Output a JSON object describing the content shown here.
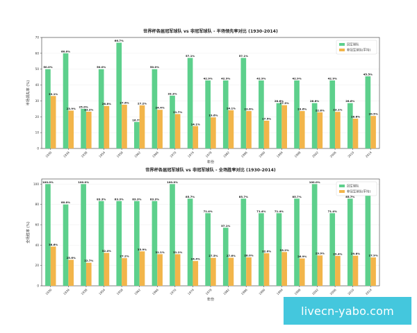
{
  "colors": {
    "champion": "#5dd08c",
    "non_champion": "#f2b54a",
    "axis": "#333333",
    "grid": "#ececec"
  },
  "watermark": {
    "text": "livecn-yabo.com"
  },
  "chart_data": [
    {
      "type": "bar",
      "title": "世界杯各届冠军球队 vs 非冠军球队 - 半场领先率对比 (1930-2014)",
      "xlabel": "年份",
      "ylabel": "半场领先率 (%)",
      "ylim": [
        0,
        70
      ],
      "yticks": [
        0,
        10,
        20,
        30,
        40,
        50,
        60,
        70
      ],
      "categories": [
        "1930",
        "1934",
        "1938",
        "1954",
        "1958",
        "1962",
        "1966",
        "1970",
        "1974",
        "1978",
        "1982",
        "1986",
        "1990",
        "1994",
        "1998",
        "2002",
        "2006",
        "2010",
        "2014"
      ],
      "legend": {
        "position": "top-right",
        "entries": [
          "冠军球队",
          "非冠军球队(平均)"
        ]
      },
      "series": [
        {
          "name": "冠军球队",
          "values": [
            50.0,
            60.0,
            25.0,
            50.0,
            66.7,
            16.7,
            50.0,
            33.3,
            57.1,
            42.9,
            42.9,
            57.1,
            42.9,
            28.6,
            42.9,
            28.6,
            42.9,
            28.6,
            45.5
          ],
          "labels": [
            "50.0%",
            "60.0%",
            "25.0%",
            "50.0%",
            "66.7%",
            "16.7%",
            "50.0%",
            "33.3%",
            "57.1%",
            "42.9%",
            "42.9%",
            "57.1%",
            "42.9%",
            "28.6%",
            "42.9%",
            "28.6%",
            "42.9%",
            "28.6%",
            "45.5%"
          ]
        },
        {
          "name": "非冠军球队(平均)",
          "values": [
            33.1,
            23.9,
            23.2,
            26.8,
            27.6,
            27.2,
            24.4,
            21.7,
            14.1,
            19.6,
            24.1,
            23.6,
            17.5,
            27.3,
            23.6,
            22.8,
            23.1,
            18.8,
            20.5
          ],
          "labels": [
            "33.1%",
            "23.9%",
            "23.2%",
            "26.8%",
            "27.6%",
            "27.2%",
            "24.4%",
            "21.7%",
            "14.1%",
            "19.6%",
            "24.1%",
            "23.6%",
            "17.5%",
            "27.3%",
            "23.6%",
            "22.8%",
            "23.1%",
            "18.8%",
            "20.5%"
          ]
        }
      ]
    },
    {
      "type": "bar",
      "title": "世界杯各届冠军球队 vs 非冠军球队 - 全场胜率对比 (1930-2014)",
      "xlabel": "年份",
      "ylabel": "全场胜率 (%)",
      "ylim": [
        0,
        105
      ],
      "yticks": [
        0,
        20,
        40,
        60,
        80,
        100
      ],
      "categories": [
        "1930",
        "1934",
        "1938",
        "1954",
        "1958",
        "1962",
        "1966",
        "1970",
        "1974",
        "1978",
        "1982",
        "1986",
        "1990",
        "1994",
        "1998",
        "2002",
        "2006",
        "2010",
        "2014"
      ],
      "legend": {
        "position": "top-right",
        "entries": [
          "冠军球队",
          "非冠军球队(平均)"
        ]
      },
      "series": [
        {
          "name": "冠军球队",
          "values": [
            100.0,
            80.0,
            100.0,
            83.3,
            83.3,
            83.3,
            83.3,
            100.0,
            85.7,
            71.4,
            57.1,
            85.7,
            71.4,
            71.4,
            85.7,
            100.0,
            71.4,
            85.7,
            90.9
          ],
          "labels": [
            "100.0%",
            "80.0%",
            "100.0%",
            "83.3%",
            "83.3%",
            "83.3%",
            "83.3%",
            "100.0%",
            "85.7%",
            "71.4%",
            "57.1%",
            "85.7%",
            "71.4%",
            "71.4%",
            "85.7%",
            "100.0%",
            "71.4%",
            "85.7%",
            "90.9%"
          ]
        },
        {
          "name": "非冠军球队(平均)",
          "values": [
            38.6,
            25.6,
            22.7,
            32.4,
            27.2,
            33.9,
            31.1,
            31.1,
            24.4,
            27.5,
            27.6,
            28.0,
            32.0,
            33.2,
            26.9,
            29.9,
            29.4,
            29.6,
            27.9
          ],
          "labels": [
            "38.6%",
            "25.6%",
            "22.7%",
            "32.4%",
            "27.2%",
            "33.9%",
            "31.1%",
            "31.1%",
            "24.4%",
            "27.5%",
            "27.6%",
            "28.0%",
            "32.0%",
            "33.2%",
            "26.9%",
            "29.9%",
            "29.4%",
            "29.6%",
            "27.9%"
          ]
        }
      ]
    }
  ]
}
